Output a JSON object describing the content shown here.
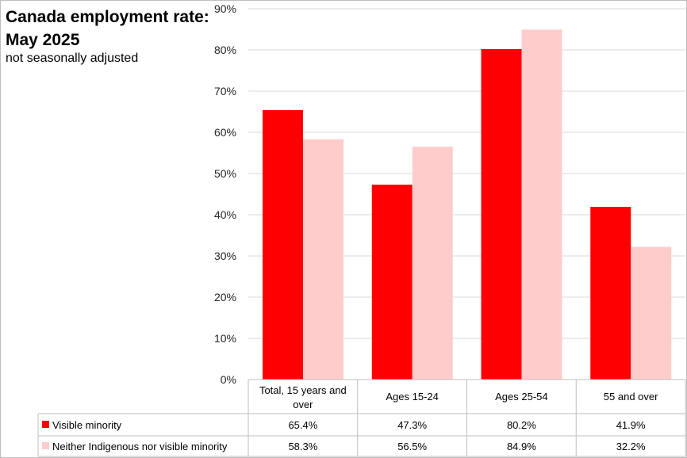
{
  "chart_data": {
    "type": "bar",
    "title": "Canada employment rate: May 2025",
    "subtitle": "not seasonally adjusted",
    "categories": [
      "Total, 15 years and over",
      "Ages 15-24",
      "Ages 25-54",
      "55 and over"
    ],
    "series": [
      {
        "name": "Visible minority",
        "values": [
          65.4,
          47.3,
          80.2,
          41.9
        ],
        "labels": [
          "65.4%",
          "47.3%",
          "80.2%",
          "41.9%"
        ],
        "color": "#ff0000"
      },
      {
        "name": "Neither Indigenous nor visible minority",
        "values": [
          58.3,
          56.5,
          84.9,
          32.2
        ],
        "labels": [
          "58.3%",
          "56.5%",
          "84.9%",
          "32.2%"
        ],
        "color": "#ffcccc"
      }
    ],
    "ylim": [
      0,
      90
    ],
    "yticks": [
      0,
      10,
      20,
      30,
      40,
      50,
      60,
      70,
      80,
      90
    ],
    "ytick_labels": [
      "0%",
      "10%",
      "20%",
      "30%",
      "40%",
      "50%",
      "60%",
      "70%",
      "80%",
      "90%"
    ],
    "grid": true,
    "legend": "data-table"
  }
}
